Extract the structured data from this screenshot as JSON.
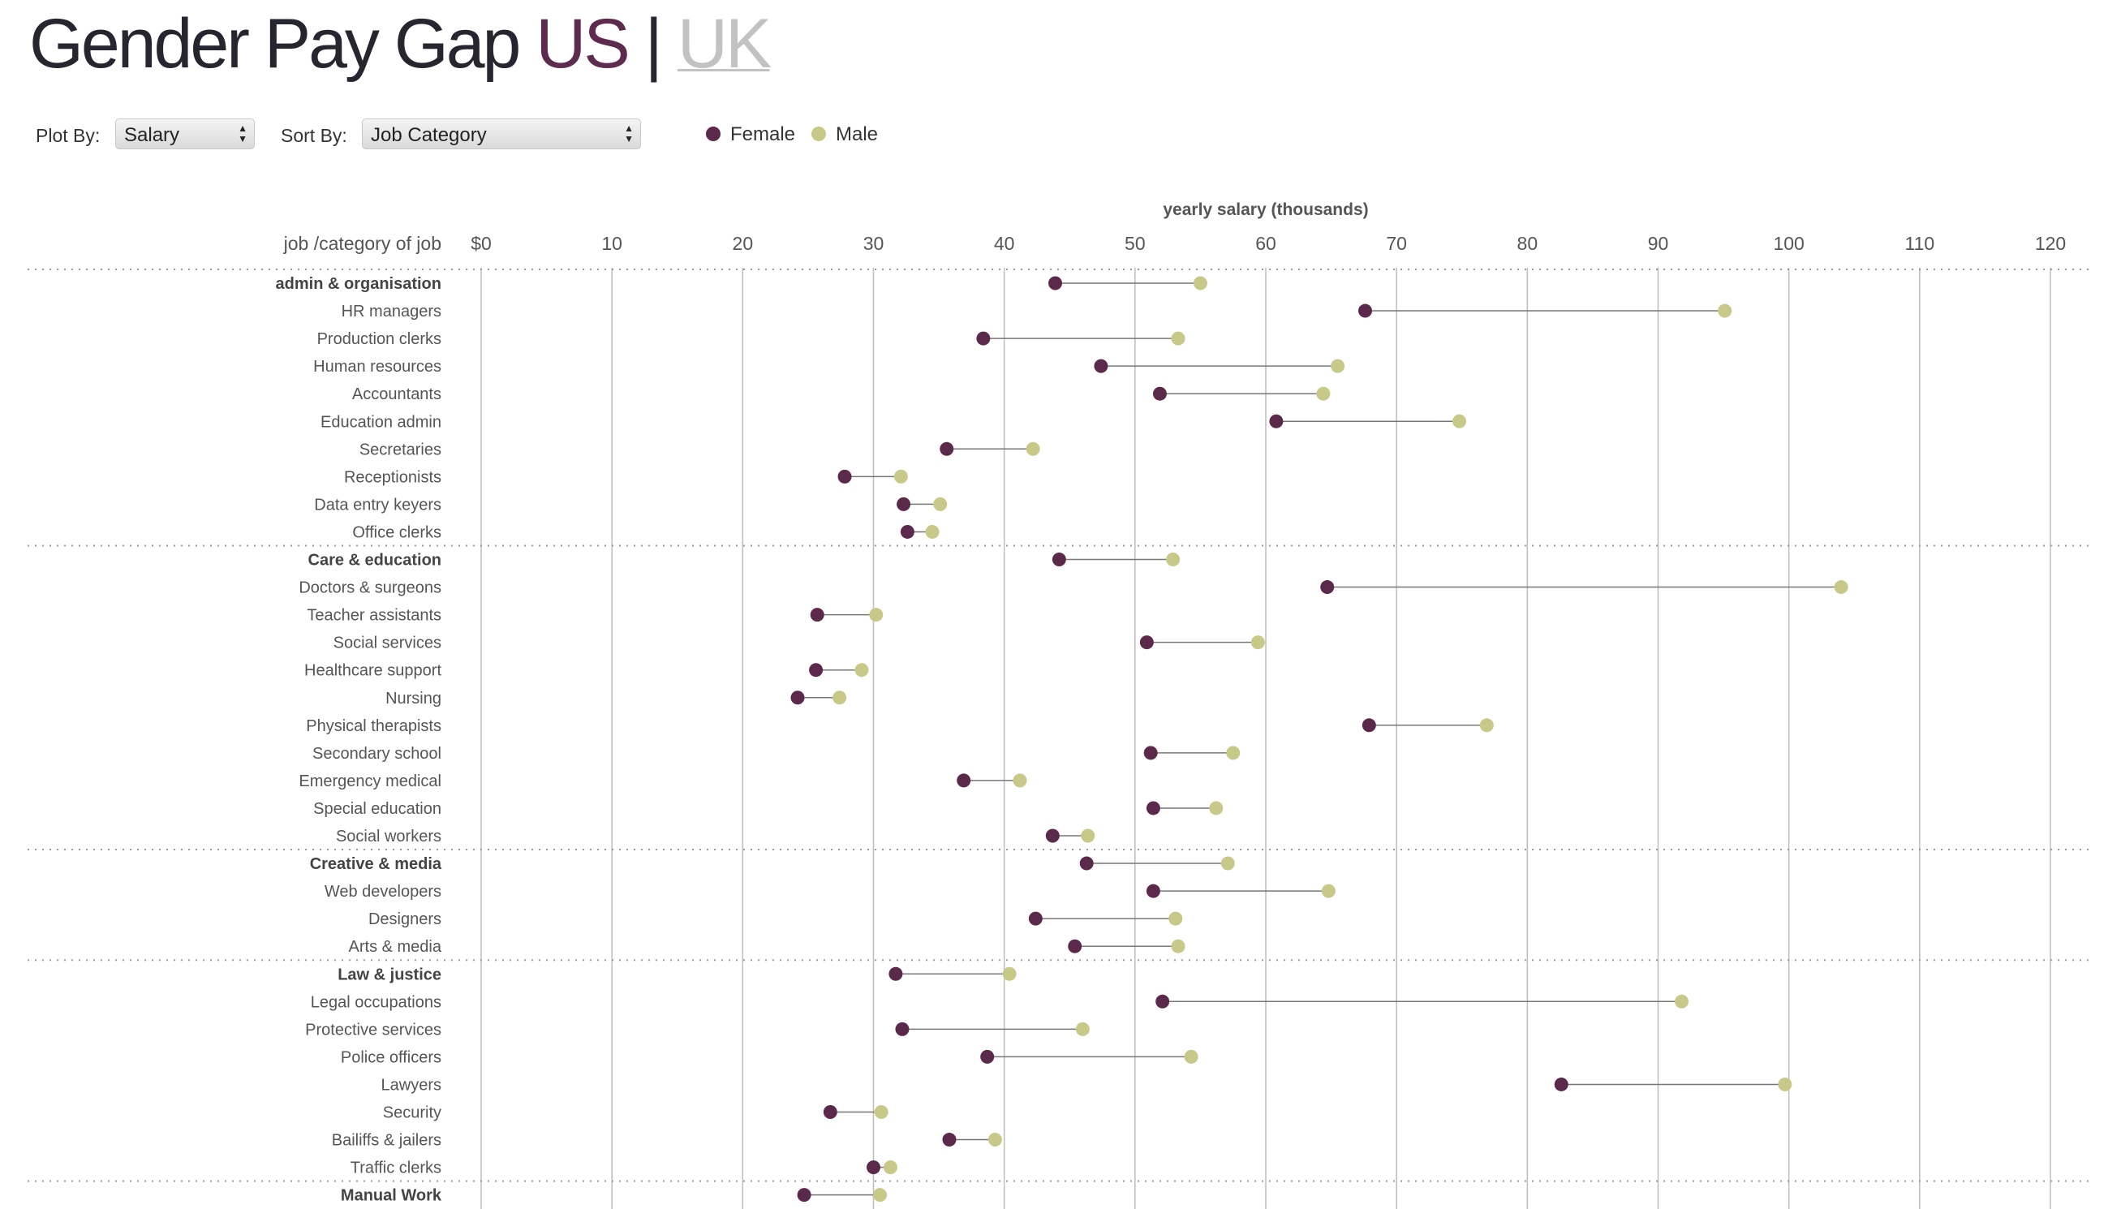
{
  "title": {
    "main": "Gender Pay Gap",
    "us": "US",
    "separator": "|",
    "uk": "UK"
  },
  "controls": {
    "plot_by_label": "Plot By:",
    "plot_by_value": "Salary",
    "sort_by_label": "Sort By:",
    "sort_by_value": "Job Category"
  },
  "legend": {
    "female": "Female",
    "male": "Male"
  },
  "colors": {
    "female": "#5b2a4a",
    "male": "#c8c989",
    "line": "#777777",
    "grid": "#bdbdbd"
  },
  "chart_data": {
    "type": "dumbbell",
    "x_title": "yearly salary (thousands)",
    "y_title": "job /category of job",
    "xlim": [
      0,
      120
    ],
    "x_ticks": [
      0,
      10,
      20,
      30,
      40,
      50,
      60,
      70,
      80,
      90,
      100,
      110,
      120
    ],
    "x_tick_labels": [
      "$0",
      "10",
      "20",
      "30",
      "40",
      "50",
      "60",
      "70",
      "80",
      "90",
      "100",
      "110",
      "120"
    ],
    "series": [
      {
        "name": "Female",
        "key": "female"
      },
      {
        "name": "Male",
        "key": "male"
      }
    ],
    "rows": [
      {
        "label": "admin & organisation",
        "group": true,
        "female": 43.9,
        "male": 55.0
      },
      {
        "label": "HR managers",
        "female": 67.6,
        "male": 95.1
      },
      {
        "label": "Production clerks",
        "female": 38.4,
        "male": 53.3
      },
      {
        "label": "Human resources",
        "female": 47.4,
        "male": 65.5
      },
      {
        "label": "Accountants",
        "female": 51.9,
        "male": 64.4
      },
      {
        "label": "Education admin",
        "female": 60.8,
        "male": 74.8
      },
      {
        "label": "Secretaries",
        "female": 35.6,
        "male": 42.2
      },
      {
        "label": "Receptionists",
        "female": 27.8,
        "male": 32.1
      },
      {
        "label": "Data entry keyers",
        "female": 32.3,
        "male": 35.1
      },
      {
        "label": "Office clerks",
        "female": 32.6,
        "male": 34.5
      },
      {
        "label": "Care & education",
        "group": true,
        "female": 44.2,
        "male": 52.9
      },
      {
        "label": "Doctors & surgeons",
        "female": 64.7,
        "male": 104.0
      },
      {
        "label": "Teacher assistants",
        "female": 25.7,
        "male": 30.2
      },
      {
        "label": "Social services",
        "female": 50.9,
        "male": 59.4
      },
      {
        "label": "Healthcare support",
        "female": 25.6,
        "male": 29.1
      },
      {
        "label": "Nursing",
        "female": 24.2,
        "male": 27.4
      },
      {
        "label": "Physical therapists",
        "female": 67.9,
        "male": 76.9
      },
      {
        "label": "Secondary school",
        "female": 51.2,
        "male": 57.5
      },
      {
        "label": "Emergency medical",
        "female": 36.9,
        "male": 41.2
      },
      {
        "label": "Special education",
        "female": 51.4,
        "male": 56.2
      },
      {
        "label": "Social workers",
        "female": 43.7,
        "male": 46.4
      },
      {
        "label": "Creative & media",
        "group": true,
        "female": 46.3,
        "male": 57.1
      },
      {
        "label": "Web developers",
        "female": 51.4,
        "male": 64.8
      },
      {
        "label": "Designers",
        "female": 42.4,
        "male": 53.1
      },
      {
        "label": "Arts & media",
        "female": 45.4,
        "male": 53.3
      },
      {
        "label": "Law & justice",
        "group": true,
        "female": 31.7,
        "male": 40.4
      },
      {
        "label": "Legal occupations",
        "female": 52.1,
        "male": 91.8
      },
      {
        "label": "Protective services",
        "female": 32.2,
        "male": 46.0
      },
      {
        "label": "Police officers",
        "female": 38.7,
        "male": 54.3
      },
      {
        "label": "Lawyers",
        "female": 82.6,
        "male": 99.7
      },
      {
        "label": "Security",
        "female": 26.7,
        "male": 30.6
      },
      {
        "label": "Bailiffs & jailers",
        "female": 35.8,
        "male": 39.3
      },
      {
        "label": "Traffic clerks",
        "female": 30.0,
        "male": 31.3
      },
      {
        "label": "Manual Work",
        "group": true,
        "female": 24.7,
        "male": 30.5
      }
    ]
  }
}
